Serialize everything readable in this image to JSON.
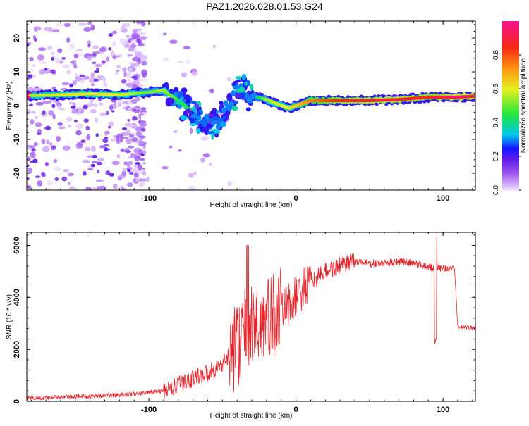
{
  "title": "PAZ1.2026.028.01.53.G24",
  "chart_data": [
    {
      "type": "heatmap",
      "title": "PAZ1.2026.028.01.53.G24",
      "xlabel": "Height of straight line (km)",
      "ylabel": "Frequency (Hz)",
      "xlim": [
        -183,
        122
      ],
      "ylim": [
        -25,
        25
      ],
      "x_ticks": [
        -100,
        0,
        100
      ],
      "y_ticks": [
        -20,
        -10,
        0,
        10,
        20
      ],
      "colorbar": {
        "label": "Normalized spectral amplitude",
        "range": [
          0,
          1
        ],
        "ticks": [
          "0.0",
          "0.2",
          "0.4",
          "0.6",
          "0.8"
        ]
      },
      "frequency_ridge": [
        {
          "h": -180,
          "f": 3.0,
          "amp": 0.55
        },
        {
          "h": -160,
          "f": 3.2,
          "amp": 0.6
        },
        {
          "h": -140,
          "f": 3.5,
          "amp": 0.62
        },
        {
          "h": -120,
          "f": 3.2,
          "amp": 0.6
        },
        {
          "h": -100,
          "f": 4.0,
          "amp": 0.5
        },
        {
          "h": -90,
          "f": 4.5,
          "amp": 0.55
        },
        {
          "h": -80,
          "f": 1.5,
          "amp": 0.45
        },
        {
          "h": -70,
          "f": -2.0,
          "amp": 0.4
        },
        {
          "h": -60,
          "f": -5.5,
          "amp": 0.35
        },
        {
          "h": -50,
          "f": -3.0,
          "amp": 0.3
        },
        {
          "h": -40,
          "f": 5.0,
          "amp": 0.25
        },
        {
          "h": -30,
          "f": 3.0,
          "amp": 0.3
        },
        {
          "h": -20,
          "f": 1.8,
          "amp": 0.55
        },
        {
          "h": -5,
          "f": -0.8,
          "amp": 0.6
        },
        {
          "h": 10,
          "f": 1.5,
          "amp": 0.75
        },
        {
          "h": 30,
          "f": 1.5,
          "amp": 0.85
        },
        {
          "h": 50,
          "f": 1.5,
          "amp": 0.9
        },
        {
          "h": 70,
          "f": 1.8,
          "amp": 0.9
        },
        {
          "h": 90,
          "f": 2.5,
          "amp": 0.85
        },
        {
          "h": 110,
          "f": 2.5,
          "amp": 0.95
        },
        {
          "h": 122,
          "f": 2.8,
          "amp": 0.9
        }
      ]
    },
    {
      "type": "line",
      "xlabel": "Height of straight line (km)",
      "ylabel": "SNR (10 * v/v)",
      "xlim": [
        -183,
        122
      ],
      "ylim": [
        0,
        6500
      ],
      "x_ticks": [
        -100,
        0,
        100
      ],
      "y_ticks": [
        0,
        2000,
        4000,
        6000
      ],
      "line_color": "#e8242a",
      "series": [
        {
          "name": "SNR",
          "points": [
            [
              -183,
              120
            ],
            [
              -160,
              160
            ],
            [
              -140,
              200
            ],
            [
              -120,
              250
            ],
            [
              -105,
              300
            ],
            [
              -90,
              400
            ],
            [
              -80,
              600
            ],
            [
              -70,
              900
            ],
            [
              -60,
              1100
            ],
            [
              -50,
              1400
            ],
            [
              -40,
              2200
            ],
            [
              -35,
              2600
            ],
            [
              -30,
              2800
            ],
            [
              -25,
              3000
            ],
            [
              -20,
              3100
            ],
            [
              -15,
              3300
            ],
            [
              -10,
              3500
            ],
            [
              -5,
              3700
            ],
            [
              0,
              4000
            ],
            [
              5,
              4300
            ],
            [
              10,
              4600
            ],
            [
              20,
              5000
            ],
            [
              30,
              5200
            ],
            [
              40,
              5400
            ],
            [
              50,
              5300
            ],
            [
              60,
              5300
            ],
            [
              70,
              5400
            ],
            [
              80,
              5300
            ],
            [
              90,
              5200
            ],
            [
              95,
              5100
            ],
            [
              100,
              5150
            ],
            [
              105,
              5100
            ],
            [
              108,
              5000
            ],
            [
              110,
              2900
            ],
            [
              115,
              2850
            ],
            [
              122,
              2800
            ]
          ]
        }
      ]
    }
  ]
}
